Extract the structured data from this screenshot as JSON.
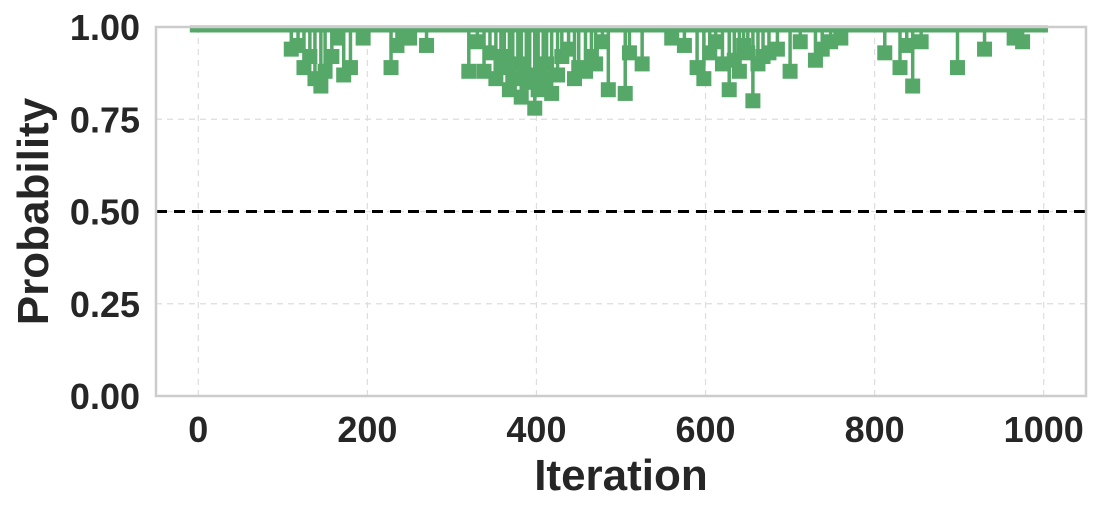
{
  "chart_data": {
    "type": "line",
    "title": "",
    "xlabel": "Iteration",
    "ylabel": "Probability",
    "xlim": [
      -50,
      1050
    ],
    "ylim": [
      0,
      1
    ],
    "xticks": [
      0,
      200,
      400,
      600,
      800,
      1000
    ],
    "xtick_labels": [
      "0",
      "200",
      "400",
      "600",
      "800",
      "1000"
    ],
    "yticks": [
      0,
      0.25,
      0.5,
      0.75,
      1.0
    ],
    "ytick_labels": [
      "0.00",
      "0.25",
      "0.50",
      "0.75",
      "1.00"
    ],
    "grid": true,
    "reference_line": {
      "y": 0.5,
      "style": "dashed",
      "color": "#000000"
    },
    "colors": {
      "series": "#55a868",
      "grid": "#dddddd",
      "frame": "#cccccc",
      "text": "#262626"
    },
    "series": [
      {
        "marker": "square",
        "x": [
          110,
          118,
          125,
          132,
          138,
          145,
          150,
          158,
          165,
          172,
          180,
          195,
          228,
          235,
          243,
          250,
          270,
          320,
          330,
          338,
          345,
          352,
          358,
          362,
          368,
          372,
          378,
          382,
          388,
          392,
          398,
          402,
          408,
          412,
          418,
          425,
          430,
          438,
          445,
          450,
          458,
          465,
          470,
          478,
          485,
          505,
          510,
          525,
          560,
          575,
          590,
          598,
          605,
          612,
          620,
          628,
          634,
          640,
          645,
          650,
          656,
          662,
          668,
          675,
          685,
          700,
          712,
          730,
          738,
          748,
          760,
          812,
          830,
          838,
          845,
          855,
          898,
          930,
          965,
          975
        ],
        "y": [
          0.94,
          0.95,
          0.89,
          0.92,
          0.86,
          0.84,
          0.88,
          0.92,
          0.97,
          0.87,
          0.89,
          0.97,
          0.89,
          0.95,
          0.97,
          0.97,
          0.95,
          0.88,
          0.96,
          0.88,
          0.93,
          0.86,
          0.89,
          0.92,
          0.83,
          0.86,
          0.9,
          0.81,
          0.87,
          0.85,
          0.78,
          0.83,
          0.86,
          0.9,
          0.82,
          0.87,
          0.92,
          0.94,
          0.86,
          0.89,
          0.88,
          0.92,
          0.9,
          0.96,
          0.83,
          0.82,
          0.93,
          0.9,
          0.97,
          0.95,
          0.89,
          0.86,
          0.93,
          0.96,
          0.9,
          0.83,
          0.91,
          0.88,
          0.95,
          0.93,
          0.8,
          0.9,
          0.92,
          0.93,
          0.94,
          0.88,
          0.96,
          0.91,
          0.94,
          0.96,
          0.97,
          0.93,
          0.89,
          0.95,
          0.84,
          0.96,
          0.89,
          0.94,
          0.97,
          0.96
        ]
      }
    ]
  }
}
